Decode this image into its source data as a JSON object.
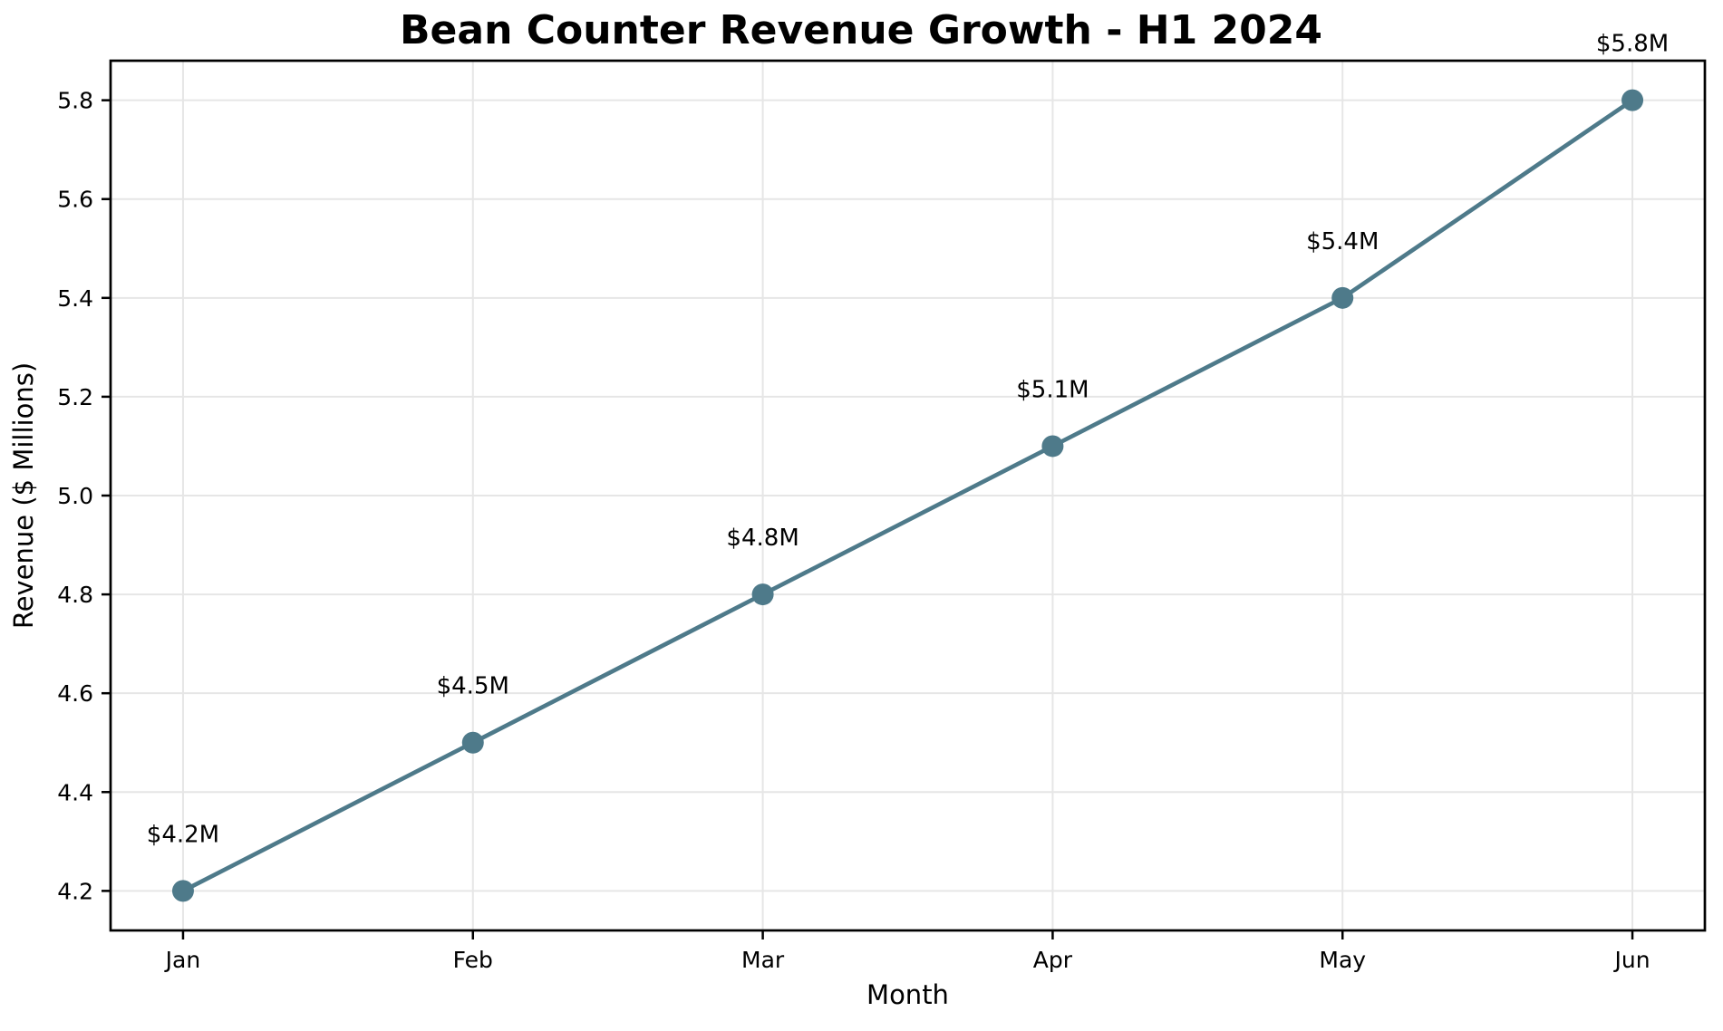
{
  "chart_data": {
    "type": "line",
    "title": "Bean Counter Revenue Growth - H1 2024",
    "xlabel": "Month",
    "ylabel": "Revenue ($ Millions)",
    "categories": [
      "Jan",
      "Feb",
      "Mar",
      "Apr",
      "May",
      "Jun"
    ],
    "series": [
      {
        "name": "Revenue",
        "values": [
          4.2,
          4.5,
          4.8,
          5.1,
          5.4,
          5.8
        ],
        "point_labels": [
          "$4.2M",
          "$4.5M",
          "$4.8M",
          "$5.1M",
          "$5.4M",
          "$5.8M"
        ]
      }
    ],
    "yticks": [
      4.2,
      4.4,
      4.6,
      4.8,
      5.0,
      5.2,
      5.4,
      5.6,
      5.8
    ],
    "ytick_labels": [
      "4.2",
      "4.4",
      "4.6",
      "4.8",
      "5.0",
      "5.2",
      "5.4",
      "5.6",
      "5.8"
    ],
    "ylim": [
      4.12,
      5.88
    ],
    "xlim": [
      -0.25,
      5.25
    ],
    "grid": true,
    "legend_position": "none",
    "colors": {
      "line": "#4e7a8a",
      "marker": "#4e7a8a",
      "grid": "#e6e6e6",
      "spine": "#000000",
      "text": "#000000",
      "background": "#ffffff"
    }
  }
}
